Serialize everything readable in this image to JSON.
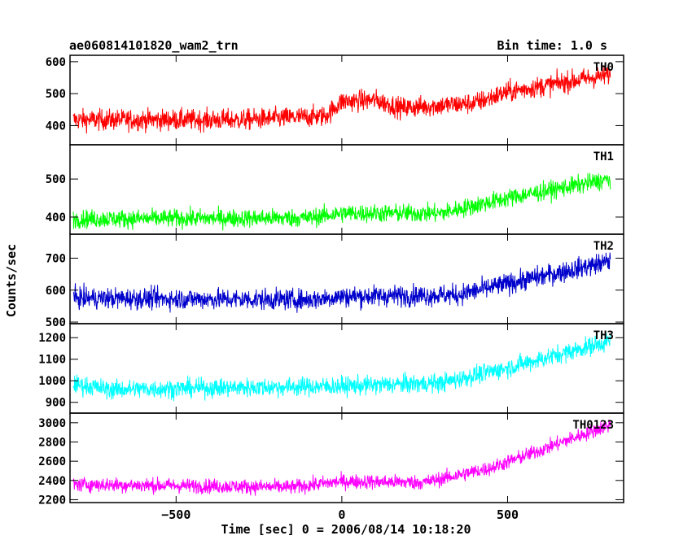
{
  "header": {
    "title": "ae060814101820_wam2_trn",
    "bin_time": "Bin time: 1.0 s"
  },
  "xlabel": "Time [sec] 0 = 2006/08/14 10:18:20",
  "ylabel": "Counts/sec",
  "chart_data": {
    "type": "line",
    "x_range": [
      -810,
      810
    ],
    "xlim": [
      -820,
      850
    ],
    "x_ticks": [
      -500,
      0,
      500
    ],
    "x_tick_labels": [
      "−500",
      "0",
      "500"
    ],
    "panels": [
      {
        "name": "TH0",
        "color": "#ff0000",
        "ylim": [
          340,
          620
        ],
        "y_ticks": [
          400,
          500,
          600
        ],
        "trend": [
          [
            -810,
            418
          ],
          [
            -300,
            418
          ],
          [
            -50,
            430
          ],
          [
            0,
            475
          ],
          [
            100,
            480
          ],
          [
            180,
            455
          ],
          [
            400,
            470
          ],
          [
            500,
            505
          ],
          [
            810,
            560
          ]
        ],
        "noise": 30
      },
      {
        "name": "TH1",
        "color": "#00ff00",
        "ylim": [
          355,
          590
        ],
        "y_ticks": [
          400,
          500
        ],
        "trend": [
          [
            -810,
            395
          ],
          [
            -100,
            398
          ],
          [
            0,
            410
          ],
          [
            300,
            410
          ],
          [
            500,
            450
          ],
          [
            810,
            500
          ]
        ],
        "noise": 22
      },
      {
        "name": "TH2",
        "color": "#0000cc",
        "ylim": [
          495,
          775
        ],
        "y_ticks": [
          500,
          600,
          700
        ],
        "trend": [
          [
            -810,
            575
          ],
          [
            -100,
            570
          ],
          [
            0,
            580
          ],
          [
            350,
            585
          ],
          [
            500,
            620
          ],
          [
            810,
            690
          ]
        ],
        "noise": 30
      },
      {
        "name": "TH3",
        "color": "#00ffff",
        "ylim": [
          850,
          1265
        ],
        "y_ticks": [
          900,
          1000,
          1100,
          1200
        ],
        "trend": [
          [
            -810,
            985
          ],
          [
            -700,
            960
          ],
          [
            0,
            975
          ],
          [
            300,
            990
          ],
          [
            500,
            1060
          ],
          [
            810,
            1185
          ]
        ],
        "noise": 40
      },
      {
        "name": "TH0123",
        "color": "#ff00ff",
        "ylim": [
          2170,
          3100
        ],
        "y_ticks": [
          2200,
          2400,
          2600,
          2800,
          3000
        ],
        "trend": [
          [
            -810,
            2360
          ],
          [
            -150,
            2330
          ],
          [
            0,
            2390
          ],
          [
            250,
            2380
          ],
          [
            450,
            2530
          ],
          [
            810,
            2980
          ]
        ],
        "noise": 70
      }
    ]
  }
}
